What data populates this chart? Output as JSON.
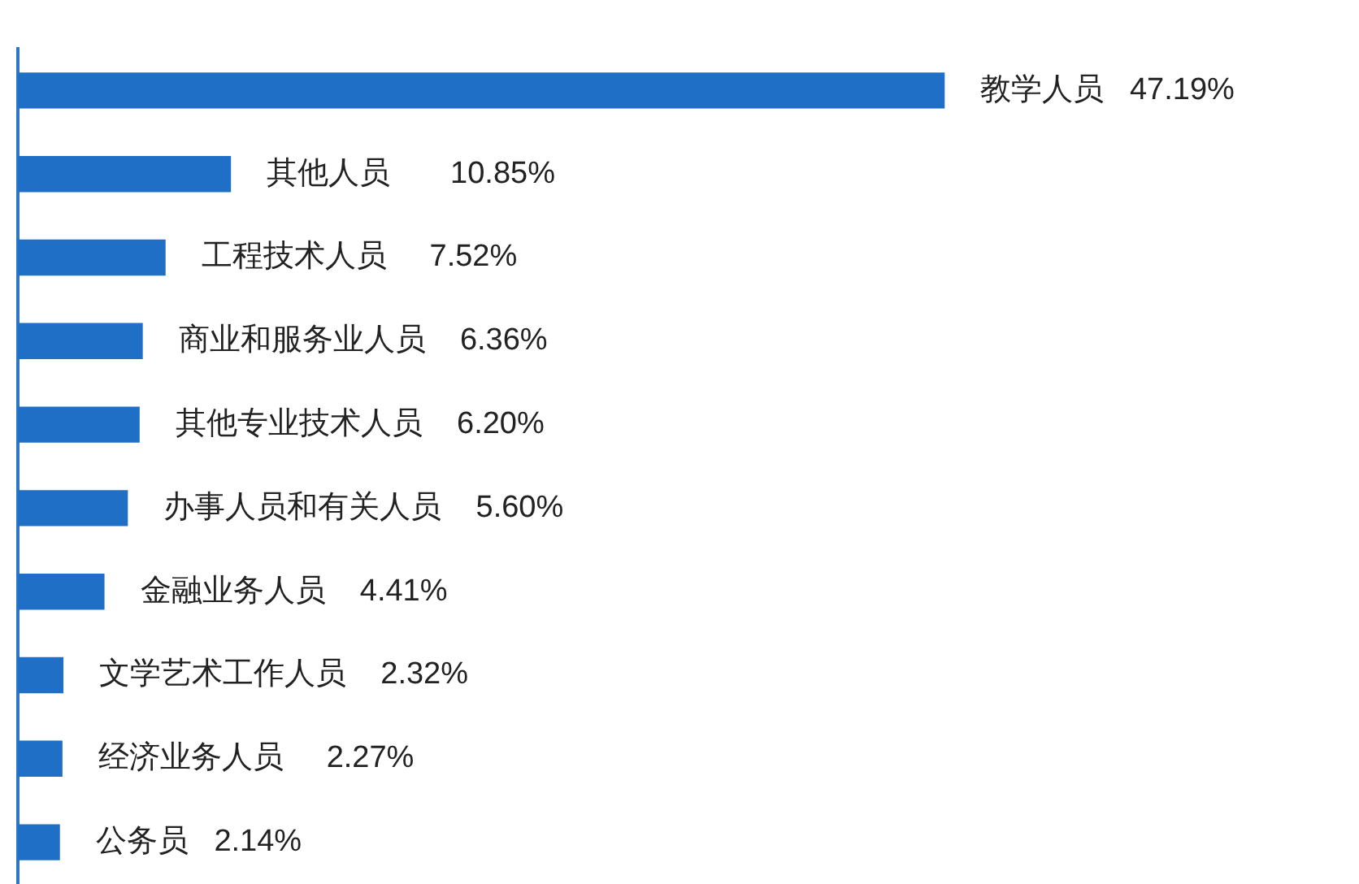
{
  "chart_data": {
    "type": "bar",
    "orientation": "horizontal",
    "categories": [
      null,
      null,
      null,
      null,
      null,
      null,
      null,
      null,
      null,
      null
    ],
    "values": [
      47.19,
      10.85,
      7.52,
      6.36,
      6.2,
      5.6,
      4.41,
      2.32,
      2.27,
      2.14
    ],
    "value_labels": [
      "教学人员   47.19%",
      "其他人员       10.85%",
      "工程技术人员     7.52%",
      "商业和服务业人员    6.36%",
      "其他专业技术人员    6.20%",
      "办事人员和有关人员    5.60%",
      "金融业务人员    4.41%",
      "文学艺术工作人员    2.32%",
      "经济业务人员     2.27%",
      "公务员   2.14%"
    ],
    "color": "#1f6fc7",
    "grid": false,
    "legend": false
  }
}
